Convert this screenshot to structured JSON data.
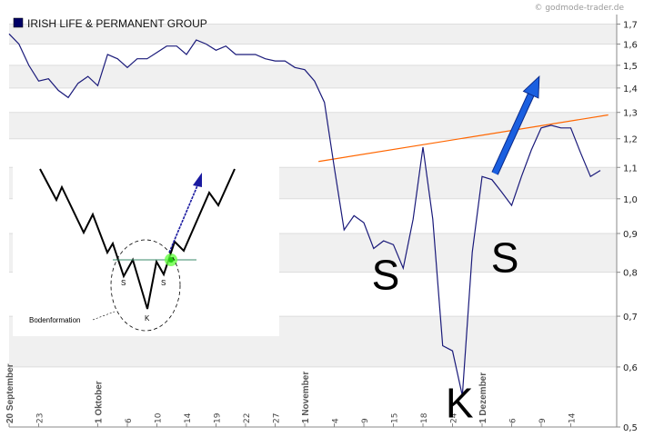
{
  "watermark": "© godmode-trader.de",
  "chart_data": {
    "type": "line",
    "title": "",
    "xlabel": "",
    "ylabel": "",
    "y_scale": "log",
    "ylim": [
      0.5,
      1.75
    ],
    "grid": true,
    "legend_position": "top-left",
    "colors": {
      "price": "#1a1a7a",
      "trendline": "#ff6600",
      "arrow": "#1a5fe0",
      "grid_band": "#f0f0f0",
      "legend_swatch": "#000066"
    },
    "y_ticks": [
      "0,5",
      "0,6",
      "0,7",
      "0,8",
      "0,9",
      "1,0",
      "1,1",
      "1,2",
      "1,3",
      "1,4",
      "1,5",
      "1,6",
      "1,7"
    ],
    "y_tick_values": [
      0.5,
      0.6,
      0.7,
      0.8,
      0.9,
      1.0,
      1.1,
      1.2,
      1.3,
      1.4,
      1.5,
      1.6,
      1.7
    ],
    "x_ticks": [
      {
        "label": "20 September",
        "major": true,
        "i": 0
      },
      {
        "label": "23",
        "major": false,
        "i": 3
      },
      {
        "label": "1 Oktober",
        "major": true,
        "i": 9
      },
      {
        "label": "6",
        "major": false,
        "i": 12
      },
      {
        "label": "10",
        "major": false,
        "i": 15
      },
      {
        "label": "14",
        "major": false,
        "i": 18
      },
      {
        "label": "19",
        "major": false,
        "i": 21
      },
      {
        "label": "22",
        "major": false,
        "i": 24
      },
      {
        "label": "27",
        "major": false,
        "i": 27
      },
      {
        "label": "1 November",
        "major": true,
        "i": 30
      },
      {
        "label": "4",
        "major": false,
        "i": 33
      },
      {
        "label": "9",
        "major": false,
        "i": 36
      },
      {
        "label": "15",
        "major": false,
        "i": 39
      },
      {
        "label": "18",
        "major": false,
        "i": 42
      },
      {
        "label": "24",
        "major": false,
        "i": 45
      },
      {
        "label": "1 Dezember",
        "major": true,
        "i": 48
      },
      {
        "label": "6",
        "major": false,
        "i": 51
      },
      {
        "label": "9",
        "major": false,
        "i": 54
      },
      {
        "label": "14",
        "major": false,
        "i": 57
      }
    ],
    "series": [
      {
        "values": [
          1.65,
          1.6,
          1.5,
          1.43,
          1.44,
          1.39,
          1.36,
          1.42,
          1.45,
          1.41,
          1.55,
          1.53,
          1.49,
          1.53,
          1.53,
          1.56,
          1.59,
          1.59,
          1.55,
          1.62,
          1.6,
          1.57,
          1.59,
          1.55,
          1.55,
          1.55,
          1.53,
          1.52,
          1.52,
          1.49,
          1.48,
          1.43,
          1.34,
          1.1,
          0.91,
          0.95,
          0.93,
          0.86,
          0.88,
          0.87,
          0.81,
          0.94,
          1.17,
          0.94,
          0.64,
          0.63,
          0.55,
          0.85,
          1.07,
          1.06,
          1.02,
          0.98,
          1.07,
          1.16,
          1.24,
          1.25,
          1.24,
          1.24,
          1.15,
          1.07,
          1.09
        ]
      }
    ],
    "trendline": {
      "from": {
        "i": 31.4,
        "y": 1.12
      },
      "to": {
        "i": 60.8,
        "y": 1.29
      }
    },
    "arrow": {
      "from": {
        "i": 49.3,
        "y": 1.08
      },
      "to": {
        "i": 53.8,
        "y": 1.45
      }
    },
    "annotations": [
      {
        "text": "S",
        "i": 36.8,
        "y": 0.76
      },
      {
        "text": "K",
        "i": 44.3,
        "y": 0.515
      },
      {
        "text": "S",
        "i": 48.9,
        "y": 0.8
      }
    ],
    "legend": [
      {
        "label": "IRISH LIFE & PERMANENT GROUP"
      }
    ],
    "inset": {
      "caption": "Bodenformation",
      "labels": [
        "S",
        "K",
        "S"
      ]
    }
  }
}
